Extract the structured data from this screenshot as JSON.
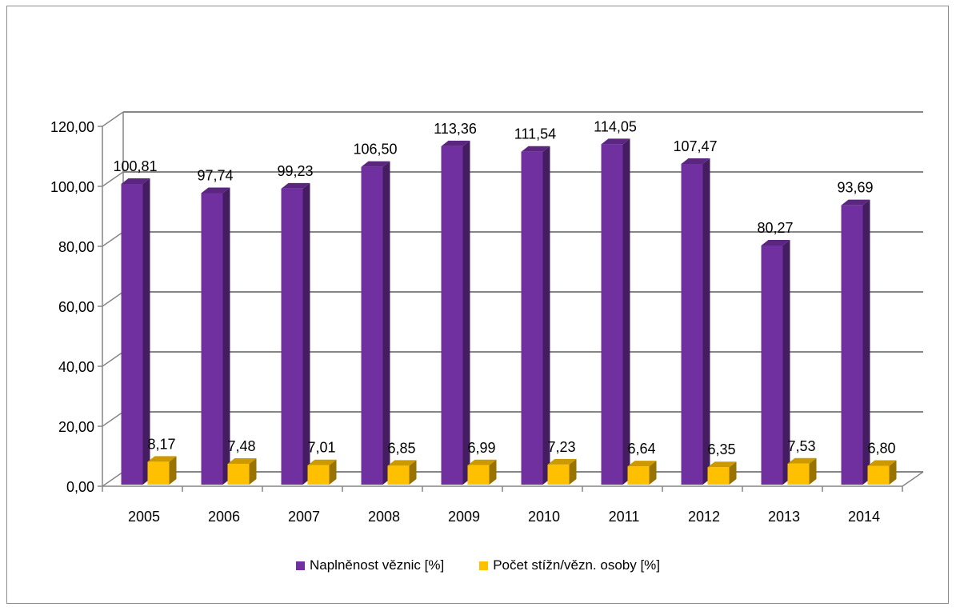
{
  "chart_data": {
    "type": "bar",
    "categories": [
      "2005",
      "2006",
      "2007",
      "2008",
      "2009",
      "2010",
      "2011",
      "2012",
      "2013",
      "2014"
    ],
    "series": [
      {
        "name": "Naplněnost věznic [%]",
        "values": [
          100.81,
          97.74,
          99.23,
          106.5,
          113.36,
          111.54,
          114.05,
          107.47,
          80.27,
          93.69
        ],
        "labels": [
          "100,81",
          "97,74",
          "99,23",
          "106,50",
          "113,36",
          "111,54",
          "114,05",
          "107,47",
          "80,27",
          "93,69"
        ],
        "color": "#7030a0"
      },
      {
        "name": "Počet stížn/vězn. osoby [%]",
        "values": [
          8.17,
          7.48,
          7.01,
          6.85,
          6.99,
          7.23,
          6.64,
          6.35,
          7.53,
          6.8
        ],
        "labels": [
          "8,17",
          "7,48",
          "7,01",
          "6,85",
          "6,99",
          "7,23",
          "6,64",
          "6,35",
          "7,53",
          "6,80"
        ],
        "color": "#ffc000"
      }
    ],
    "yticks": [
      "0,00",
      "20,00",
      "40,00",
      "60,00",
      "80,00",
      "100,00",
      "120,00"
    ],
    "ylim": [
      0,
      120
    ],
    "grid": true,
    "legend_position": "bottom",
    "title": "",
    "xlabel": "",
    "ylabel": ""
  }
}
